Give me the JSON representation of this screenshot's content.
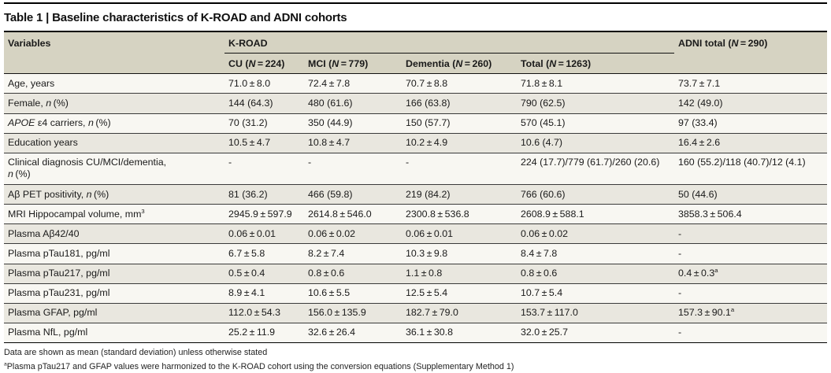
{
  "title": "Table 1 | Baseline characteristics of K-ROAD and ADNI cohorts",
  "colors": {
    "header_bg": "#d6d3c2",
    "stripe_bg": "#e9e7df",
    "row_bg": "#f8f7f2",
    "rule": "#000000"
  },
  "header": {
    "variables": "Variables",
    "group_kroad": "K-ROAD",
    "adni_total": [
      {
        "t": "ADNI total ("
      },
      {
        "t": "N",
        "i": true
      },
      {
        "t": " = 290)"
      }
    ],
    "subcolumns": [
      [
        {
          "t": "CU ("
        },
        {
          "t": "N",
          "i": true
        },
        {
          "t": " = 224)"
        }
      ],
      [
        {
          "t": "MCI ("
        },
        {
          "t": "N",
          "i": true
        },
        {
          "t": " = 779)"
        }
      ],
      [
        {
          "t": "Dementia ("
        },
        {
          "t": "N",
          "i": true
        },
        {
          "t": " = 260)"
        }
      ],
      [
        {
          "t": "Total ("
        },
        {
          "t": "N",
          "i": true
        },
        {
          "t": " = 1263)"
        }
      ]
    ]
  },
  "rows": [
    {
      "label": [
        {
          "t": "Age, years"
        }
      ],
      "cells": [
        "71.0 ± 8.0",
        "72.4 ± 7.8",
        "70.7 ± 8.8",
        "71.8 ± 8.1",
        "73.7 ± 7.1"
      ]
    },
    {
      "label": [
        {
          "t": "Female, "
        },
        {
          "t": "n",
          "i": true
        },
        {
          "t": " (%)"
        }
      ],
      "cells": [
        "144 (64.3)",
        "480 (61.6)",
        "166 (63.8)",
        "790 (62.5)",
        "142 (49.0)"
      ]
    },
    {
      "label": [
        {
          "t": "APOE",
          "i": true
        },
        {
          "t": " ε4 carriers, "
        },
        {
          "t": "n",
          "i": true
        },
        {
          "t": " (%)"
        }
      ],
      "cells": [
        "70 (31.2)",
        "350 (44.9)",
        "150 (57.7)",
        "570 (45.1)",
        "97 (33.4)"
      ]
    },
    {
      "label": [
        {
          "t": "Education years"
        }
      ],
      "cells": [
        "10.5 ± 4.7",
        "10.8 ± 4.7",
        "10.2 ± 4.9",
        "10.6 (4.7)",
        "16.4 ± 2.6"
      ]
    },
    {
      "label": [
        {
          "t": "Clinical diagnosis CU/MCI/dementia,"
        },
        {
          "br": true
        },
        {
          "t": "n",
          "i": true
        },
        {
          "t": " (%)"
        }
      ],
      "cells": [
        "-",
        "-",
        "-",
        "224 (17.7)/779 (61.7)/260 (20.6)",
        "160 (55.2)/118 (40.7)/12 (4.1)"
      ]
    },
    {
      "label": [
        {
          "t": "Aβ PET positivity, "
        },
        {
          "t": "n",
          "i": true
        },
        {
          "t": " (%)"
        }
      ],
      "cells": [
        "81 (36.2)",
        "466 (59.8)",
        "219 (84.2)",
        "766 (60.6)",
        "50 (44.6)"
      ]
    },
    {
      "label": [
        {
          "t": "MRI Hippocampal volume, mm"
        },
        {
          "t": "3",
          "sup": true
        }
      ],
      "cells": [
        "2945.9 ± 597.9",
        "2614.8 ± 546.0",
        "2300.8 ± 536.8",
        "2608.9 ± 588.1",
        "3858.3 ± 506.4"
      ]
    },
    {
      "label": [
        {
          "t": "Plasma Aβ42/40"
        }
      ],
      "cells": [
        "0.06 ± 0.01",
        "0.06 ± 0.02",
        "0.06 ± 0.01",
        "0.06 ± 0.02",
        "-"
      ]
    },
    {
      "label": [
        {
          "t": "Plasma pTau181, pg/ml"
        }
      ],
      "cells": [
        "6.7 ± 5.8",
        "8.2 ± 7.4",
        "10.3 ± 9.8",
        "8.4 ± 7.8",
        "-"
      ]
    },
    {
      "label": [
        {
          "t": "Plasma pTau217, pg/ml"
        }
      ],
      "cells": [
        "0.5 ± 0.4",
        "0.8 ± 0.6",
        "1.1 ± 0.8",
        "0.8 ± 0.6",
        [
          {
            "t": "0.4 ± 0.3"
          },
          {
            "t": "a",
            "sup": true
          }
        ]
      ]
    },
    {
      "label": [
        {
          "t": "Plasma pTau231, pg/ml"
        }
      ],
      "cells": [
        "8.9 ± 4.1",
        "10.6 ± 5.5",
        "12.5 ± 5.4",
        "10.7 ± 5.4",
        "-"
      ]
    },
    {
      "label": [
        {
          "t": "Plasma GFAP, pg/ml"
        }
      ],
      "cells": [
        "112.0 ± 54.3",
        "156.0 ± 135.9",
        "182.7 ± 79.0",
        "153.7 ± 117.0",
        [
          {
            "t": "157.3 ± 90.1"
          },
          {
            "t": "a",
            "sup": true
          }
        ]
      ]
    },
    {
      "label": [
        {
          "t": "Plasma NfL, pg/ml"
        }
      ],
      "cells": [
        "25.2 ± 11.9",
        "32.6 ± 26.4",
        "36.1 ± 30.8",
        "32.0 ± 25.7",
        "-"
      ]
    }
  ],
  "footnotes": [
    [
      {
        "t": "Data are shown as mean (standard deviation) unless otherwise stated"
      }
    ],
    [
      {
        "t": "a",
        "sup": true
      },
      {
        "t": "Plasma pTau217 and GFAP values were harmonized to the K-ROAD cohort using the conversion equations (Supplementary Method 1)"
      }
    ]
  ]
}
